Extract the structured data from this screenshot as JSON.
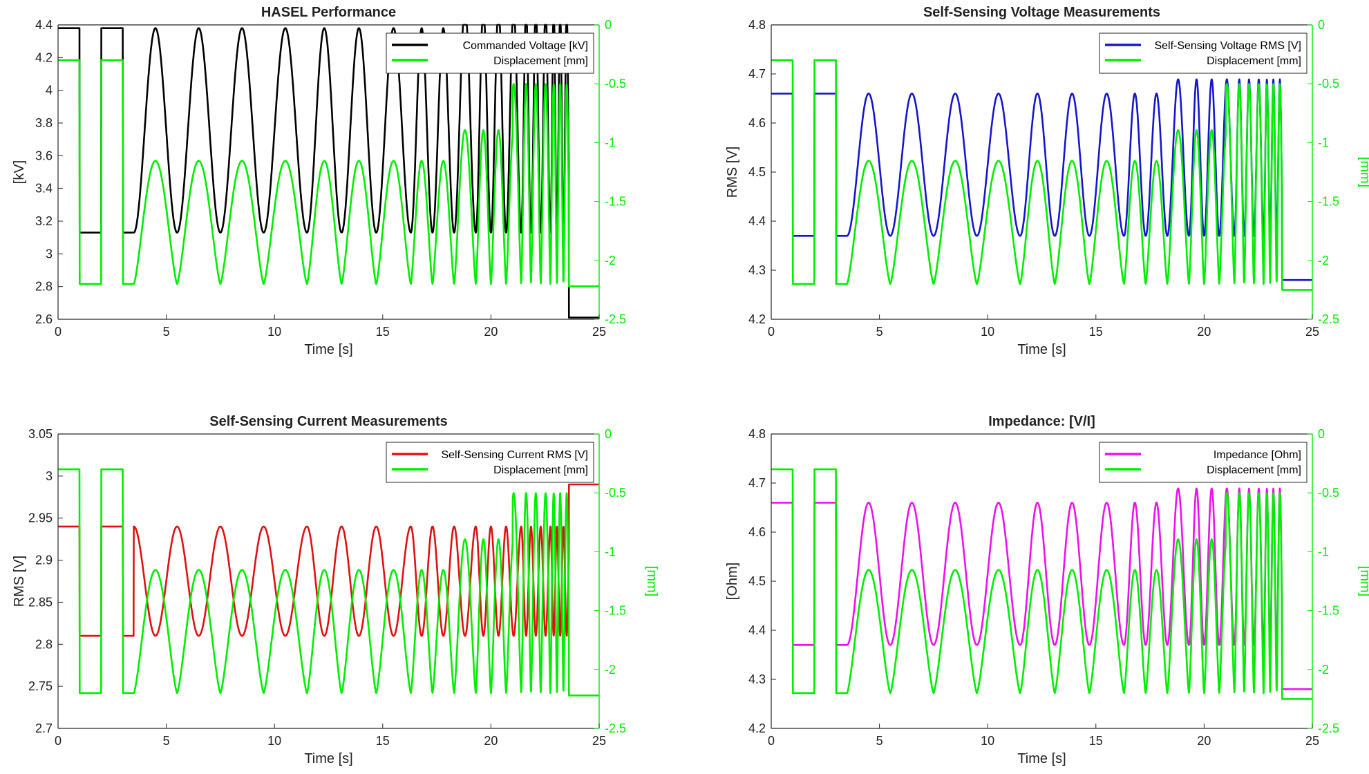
{
  "colors": {
    "green": "#00ee00",
    "black": "#000000",
    "blue": "#1515d0",
    "red": "#e01010",
    "magenta": "#ee10ee"
  },
  "chart_data": [
    {
      "type": "line",
      "title": "HASEL Performance",
      "xlabel": "Time [s]",
      "ylabel_left": "[kV]",
      "ylabel_right": "",
      "xlim": [
        0,
        25
      ],
      "ylim_left": [
        2.6,
        4.4
      ],
      "ylim_right": [
        -2.5,
        0
      ],
      "xticks": [
        "0",
        "5",
        "10",
        "15",
        "20",
        "25"
      ],
      "yticks_left": [
        "2.6",
        "2.8",
        "3",
        "3.2",
        "3.4",
        "3.6",
        "3.8",
        "4",
        "4.2",
        "4.4"
      ],
      "yticks_right": [
        "-2.5",
        "-2",
        "-1.5",
        "-1",
        "-0.5",
        "0"
      ],
      "legend_position": "top-right",
      "series": [
        {
          "name": "Commanded Voltage [kV]",
          "axis": "left",
          "color": "#000000",
          "signal": "command",
          "low": 3.13,
          "high": 4.38,
          "end": 2.61
        },
        {
          "name": "Displacement [mm]",
          "axis": "right",
          "color": "#00ee00",
          "signal": "displacement",
          "low": -2.2,
          "high": -0.3,
          "end": -2.22
        }
      ]
    },
    {
      "type": "line",
      "title": "Self-Sensing Voltage Measurements",
      "xlabel": "Time [s]",
      "ylabel_left": "RMS [V]",
      "ylabel_right": "[mm]",
      "xlim": [
        0,
        25
      ],
      "ylim_left": [
        4.2,
        4.8
      ],
      "ylim_right": [
        -2.5,
        0
      ],
      "xticks": [
        "0",
        "5",
        "10",
        "15",
        "20",
        "25"
      ],
      "yticks_left": [
        "4.2",
        "4.3",
        "4.4",
        "4.5",
        "4.6",
        "4.7",
        "4.8"
      ],
      "yticks_right": [
        "-2.5",
        "-2",
        "-1.5",
        "-1",
        "-0.5",
        "0"
      ],
      "legend_position": "top-right",
      "series": [
        {
          "name": "Self-Sensing Voltage RMS [V]",
          "axis": "left",
          "color": "#1515d0",
          "signal": "sensor",
          "low": 4.37,
          "high": 4.66,
          "end": 4.28
        },
        {
          "name": "Displacement [mm]",
          "axis": "right",
          "color": "#00ee00",
          "signal": "displacement",
          "low": -2.2,
          "high": -0.3,
          "end": -2.25
        }
      ]
    },
    {
      "type": "line",
      "title": "Self-Sensing Current Measurements",
      "xlabel": "Time [s]",
      "ylabel_left": "RMS [V]",
      "ylabel_right": "[mm]",
      "xlim": [
        0,
        25
      ],
      "ylim_left": [
        2.7,
        3.05
      ],
      "ylim_right": [
        -2.5,
        0
      ],
      "xticks": [
        "0",
        "5",
        "10",
        "15",
        "20",
        "25"
      ],
      "yticks_left": [
        "2.7",
        "2.75",
        "2.8",
        "2.85",
        "2.9",
        "2.95",
        "3",
        "3.05"
      ],
      "yticks_right": [
        "-2.5",
        "-2",
        "-1.5",
        "-1",
        "-0.5",
        "0"
      ],
      "legend_position": "top-right",
      "series": [
        {
          "name": "Self-Sensing Current RMS [V]",
          "axis": "left",
          "color": "#e01010",
          "signal": "current",
          "low": 2.81,
          "high": 2.94,
          "end": 2.99
        },
        {
          "name": "Displacement [mm]",
          "axis": "right",
          "color": "#00ee00",
          "signal": "displacement",
          "low": -2.2,
          "high": -0.3,
          "end": -2.22
        }
      ]
    },
    {
      "type": "line",
      "title": "Impedance: [V/I]",
      "xlabel": "Time [s]",
      "ylabel_left": "[Ohm]",
      "ylabel_right": "[mm]",
      "xlim": [
        0,
        25
      ],
      "ylim_left": [
        4.2,
        4.8
      ],
      "ylim_right": [
        -2.5,
        0
      ],
      "xticks": [
        "0",
        "5",
        "10",
        "15",
        "20",
        "25"
      ],
      "yticks_left": [
        "4.2",
        "4.3",
        "4.4",
        "4.5",
        "4.6",
        "4.7",
        "4.8"
      ],
      "yticks_right": [
        "-2.5",
        "-2",
        "-1.5",
        "-1",
        "-0.5",
        "0"
      ],
      "legend_position": "top-right",
      "series": [
        {
          "name": "Impedance [Ohm]",
          "axis": "left",
          "color": "#ee10ee",
          "signal": "sensor",
          "low": 4.37,
          "high": 4.66,
          "end": 4.28
        },
        {
          "name": "Displacement [mm]",
          "axis": "right",
          "color": "#00ee00",
          "signal": "displacement",
          "low": -2.2,
          "high": -0.3,
          "end": -2.25
        }
      ]
    }
  ]
}
